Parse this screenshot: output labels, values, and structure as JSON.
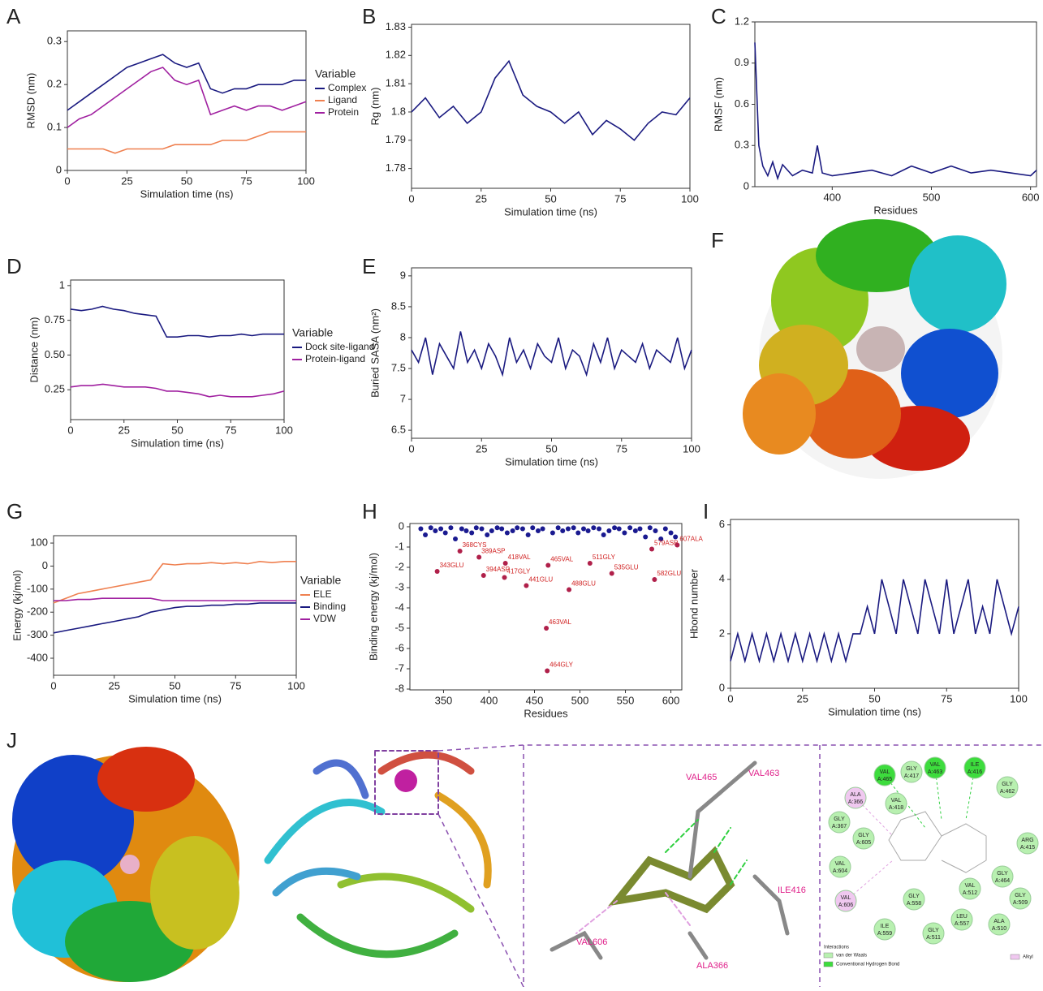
{
  "chart_data": [
    {
      "type": "line",
      "panel": "A",
      "xlabel": "Simulation time (ns)",
      "ylabel": "RMSD (nm)",
      "xlim": [
        0,
        100
      ],
      "ylim": [
        0,
        0.325
      ],
      "xticks": [
        0,
        25,
        50,
        75,
        100
      ],
      "yticks": [
        0,
        0.1,
        0.2,
        0.3
      ],
      "legend_title": "Variable",
      "x": [
        0,
        5,
        10,
        15,
        20,
        25,
        30,
        35,
        40,
        45,
        50,
        55,
        60,
        65,
        70,
        75,
        80,
        85,
        90,
        95,
        100
      ],
      "series": [
        {
          "name": "Complex",
          "color": "#1a1a80",
          "values": [
            0.14,
            0.16,
            0.18,
            0.2,
            0.22,
            0.24,
            0.25,
            0.26,
            0.27,
            0.25,
            0.24,
            0.25,
            0.19,
            0.18,
            0.19,
            0.19,
            0.2,
            0.2,
            0.2,
            0.21,
            0.21
          ]
        },
        {
          "name": "Ligand",
          "color": "#ef8050",
          "values": [
            0.05,
            0.05,
            0.05,
            0.05,
            0.04,
            0.05,
            0.05,
            0.05,
            0.05,
            0.06,
            0.06,
            0.06,
            0.06,
            0.07,
            0.07,
            0.07,
            0.08,
            0.09,
            0.09,
            0.09,
            0.09
          ]
        },
        {
          "name": "Protein",
          "color": "#a020a0",
          "values": [
            0.1,
            0.12,
            0.13,
            0.15,
            0.17,
            0.19,
            0.21,
            0.23,
            0.24,
            0.21,
            0.2,
            0.21,
            0.13,
            0.14,
            0.15,
            0.14,
            0.15,
            0.15,
            0.14,
            0.15,
            0.16
          ]
        }
      ]
    },
    {
      "type": "line",
      "panel": "B",
      "xlabel": "Simulation time (ns)",
      "ylabel": "Rg (nm)",
      "xlim": [
        0,
        100
      ],
      "ylim": [
        1.773,
        1.831
      ],
      "xticks": [
        0,
        25,
        50,
        75,
        100
      ],
      "yticks": [
        1.78,
        1.79,
        1.8,
        1.81,
        1.82,
        1.83
      ],
      "x": [
        0,
        5,
        10,
        15,
        20,
        25,
        30,
        35,
        40,
        45,
        50,
        55,
        60,
        65,
        70,
        75,
        80,
        85,
        90,
        95,
        100
      ],
      "series": [
        {
          "color": "#1a1a80",
          "values": [
            1.8,
            1.805,
            1.798,
            1.802,
            1.796,
            1.8,
            1.812,
            1.818,
            1.806,
            1.802,
            1.8,
            1.796,
            1.8,
            1.792,
            1.797,
            1.794,
            1.79,
            1.796,
            1.8,
            1.799,
            1.805
          ]
        }
      ]
    },
    {
      "type": "line",
      "panel": "C",
      "xlabel": "Residues",
      "ylabel": "RMSF (nm)",
      "xlim": [
        322,
        606
      ],
      "ylim": [
        0,
        1.2
      ],
      "xticks": [
        400,
        500,
        600
      ],
      "yticks": [
        0,
        0.3,
        0.6,
        0.9,
        1.2
      ],
      "x": [
        322,
        326,
        330,
        335,
        340,
        345,
        350,
        360,
        370,
        380,
        385,
        390,
        400,
        420,
        440,
        460,
        480,
        500,
        520,
        540,
        560,
        580,
        600,
        606
      ],
      "series": [
        {
          "color": "#1a1a80",
          "values": [
            1.05,
            0.3,
            0.15,
            0.08,
            0.18,
            0.06,
            0.16,
            0.08,
            0.12,
            0.1,
            0.3,
            0.1,
            0.08,
            0.1,
            0.12,
            0.08,
            0.15,
            0.1,
            0.15,
            0.1,
            0.12,
            0.1,
            0.08,
            0.12
          ]
        }
      ]
    },
    {
      "type": "line",
      "panel": "D",
      "xlabel": "Simulation time (ns)",
      "ylabel": "Distance (nm)",
      "xlim": [
        0,
        100
      ],
      "ylim": [
        0.035,
        1.04
      ],
      "xticks": [
        0,
        25,
        50,
        75,
        100
      ],
      "yticks": [
        0.25,
        {
          "value": 0.5,
          "label": "0.50"
        },
        0.75,
        1
      ],
      "legend_title": "Variable",
      "x": [
        0,
        5,
        10,
        15,
        20,
        25,
        30,
        35,
        40,
        45,
        50,
        55,
        60,
        65,
        70,
        75,
        80,
        85,
        90,
        95,
        100
      ],
      "series": [
        {
          "name": "Dock site-ligand",
          "color": "#1a1a80",
          "values": [
            0.83,
            0.82,
            0.83,
            0.85,
            0.83,
            0.82,
            0.8,
            0.79,
            0.78,
            0.63,
            0.63,
            0.64,
            0.64,
            0.63,
            0.64,
            0.64,
            0.65,
            0.64,
            0.65,
            0.65,
            0.65
          ]
        },
        {
          "name": "Protein-ligand",
          "color": "#a020a0",
          "values": [
            0.27,
            0.28,
            0.28,
            0.29,
            0.28,
            0.27,
            0.27,
            0.27,
            0.26,
            0.24,
            0.24,
            0.23,
            0.22,
            0.2,
            0.21,
            0.2,
            0.2,
            0.2,
            0.21,
            0.22,
            0.24
          ]
        }
      ]
    },
    {
      "type": "line",
      "panel": "E",
      "xlabel": "Simulation time (ns)",
      "ylabel": "Buried SASA (nm²)",
      "xlim": [
        0,
        100
      ],
      "ylim": [
        6.37,
        9.13
      ],
      "xticks": [
        0,
        25,
        50,
        75,
        100
      ],
      "yticks": [
        6.5,
        7,
        7.5,
        8,
        8.5,
        9
      ],
      "x": [
        0,
        2.5,
        5,
        7.5,
        10,
        12.5,
        15,
        17.5,
        20,
        22.5,
        25,
        27.5,
        30,
        32.5,
        35,
        37.5,
        40,
        42.5,
        45,
        47.5,
        50,
        52.5,
        55,
        57.5,
        60,
        62.5,
        65,
        67.5,
        70,
        72.5,
        75,
        77.5,
        80,
        82.5,
        85,
        87.5,
        90,
        92.5,
        95,
        97.5,
        100
      ],
      "series": [
        {
          "color": "#1a1a80",
          "values": [
            7.8,
            7.6,
            8.0,
            7.4,
            7.9,
            7.7,
            7.5,
            8.1,
            7.6,
            7.8,
            7.5,
            7.9,
            7.7,
            7.4,
            8.0,
            7.6,
            7.8,
            7.5,
            7.9,
            7.7,
            7.6,
            8.0,
            7.5,
            7.8,
            7.7,
            7.4,
            7.9,
            7.6,
            8.0,
            7.5,
            7.8,
            7.7,
            7.6,
            7.9,
            7.5,
            7.8,
            7.7,
            7.6,
            8.0,
            7.5,
            7.8
          ]
        }
      ]
    },
    {
      "type": "line",
      "panel": "G",
      "xlabel": "Simulation time (ns)",
      "ylabel": "Energy (kj/mol)",
      "xlim": [
        0,
        100
      ],
      "ylim": [
        -474,
        132
      ],
      "xticks": [
        0,
        25,
        50,
        75,
        100
      ],
      "yticks": [
        100,
        0,
        -100,
        -200,
        -300,
        -400
      ],
      "legend_title": "Variable",
      "x": [
        0,
        5,
        10,
        15,
        20,
        25,
        30,
        35,
        40,
        45,
        50,
        55,
        60,
        65,
        70,
        75,
        80,
        85,
        90,
        95,
        100
      ],
      "series": [
        {
          "name": "ELE",
          "color": "#ef8050",
          "values": [
            -160,
            -140,
            -120,
            -110,
            -100,
            -90,
            -80,
            -70,
            -60,
            10,
            5,
            10,
            10,
            15,
            10,
            15,
            10,
            20,
            15,
            20,
            20
          ]
        },
        {
          "name": "Binding",
          "color": "#1a1a80",
          "values": [
            -290,
            -280,
            -270,
            -260,
            -250,
            -240,
            -230,
            -220,
            -200,
            -190,
            -180,
            -175,
            -175,
            -170,
            -170,
            -165,
            -165,
            -160,
            -160,
            -160,
            -160
          ]
        },
        {
          "name": "VDW",
          "color": "#a020a0",
          "values": [
            -150,
            -150,
            -145,
            -145,
            -140,
            -140,
            -140,
            -140,
            -140,
            -150,
            -150,
            -150,
            -150,
            -150,
            -150,
            -150,
            -150,
            -150,
            -150,
            -150,
            -150
          ]
        }
      ]
    },
    {
      "type": "scatter",
      "panel": "H",
      "xlabel": "Residues",
      "ylabel": "Binding energy (kj/mol)",
      "xlim": [
        313,
        612
      ],
      "ylim": [
        -8.04,
        0.16
      ],
      "xticks": [
        350,
        400,
        450,
        500,
        550,
        600
      ],
      "yticks": [
        0,
        -1,
        -2,
        -3,
        -4,
        -5,
        -6,
        -7,
        -8
      ],
      "series": [
        {
          "color": "#1a1a90",
          "x": [
            325,
            330,
            336,
            341,
            347,
            352,
            358,
            363,
            370,
            375,
            381,
            386,
            392,
            398,
            403,
            409,
            414,
            420,
            426,
            431,
            437,
            443,
            448,
            454,
            459,
            470,
            476,
            481,
            487,
            493,
            498,
            504,
            509,
            515,
            521,
            526,
            532,
            538,
            543,
            549,
            555,
            561,
            566,
            572,
            577,
            583,
            589,
            594,
            600,
            605
          ],
          "values": [
            -0.1,
            -0.4,
            -0.05,
            -0.2,
            -0.1,
            -0.3,
            -0.05,
            -0.6,
            -0.1,
            -0.2,
            -0.3,
            -0.05,
            -0.1,
            -0.4,
            -0.2,
            -0.05,
            -0.1,
            -0.3,
            -0.2,
            -0.05,
            -0.1,
            -0.4,
            -0.05,
            -0.2,
            -0.1,
            -0.3,
            -0.05,
            -0.2,
            -0.1,
            -0.05,
            -0.3,
            -0.1,
            -0.2,
            -0.05,
            -0.1,
            -0.4,
            -0.2,
            -0.05,
            -0.1,
            -0.3,
            -0.05,
            -0.2,
            -0.1,
            -0.5,
            -0.05,
            -0.2,
            -0.6,
            -0.1,
            -0.3,
            -0.5
          ]
        },
        {
          "color": "#b0204a",
          "x": [
            343,
            368,
            389,
            394,
            417,
            418,
            441,
            463,
            464,
            465,
            488,
            511,
            535,
            579,
            582,
            607
          ],
          "values": [
            -2.2,
            -1.2,
            -1.5,
            -2.4,
            -2.5,
            -1.8,
            -2.9,
            -5.0,
            -7.1,
            -1.9,
            -3.1,
            -1.8,
            -2.3,
            -1.1,
            -2.6,
            -0.9
          ],
          "labels": [
            "343GLU",
            "368CYS",
            "389ASP",
            "394ASP",
            "417GLY",
            "418VAL",
            "441GLU",
            "463VAL",
            "464GLY",
            "465VAL",
            "488GLU",
            "511GLY",
            "535GLU",
            "579ASP",
            "582GLU",
            "607ALA"
          ]
        }
      ]
    },
    {
      "type": "line",
      "panel": "I",
      "xlabel": "Simulation time (ns)",
      "ylabel": "Hbond number",
      "xlim": [
        0,
        100
      ],
      "ylim": [
        0,
        6.2
      ],
      "xticks": [
        0,
        25,
        50,
        75,
        100
      ],
      "yticks": [
        0,
        2,
        4,
        6
      ],
      "x": [
        0,
        2.5,
        5,
        7.5,
        10,
        12.5,
        15,
        17.5,
        20,
        22.5,
        25,
        27.5,
        30,
        32.5,
        35,
        37.5,
        40,
        42.5,
        45,
        47.5,
        50,
        52.5,
        55,
        57.5,
        60,
        62.5,
        65,
        67.5,
        70,
        72.5,
        75,
        77.5,
        80,
        82.5,
        85,
        87.5,
        90,
        92.5,
        95,
        97.5,
        100
      ],
      "series": [
        {
          "color": "#1a1a80",
          "values": [
            1,
            2,
            1,
            2,
            1,
            2,
            1,
            2,
            1,
            2,
            1,
            2,
            1,
            2,
            1,
            2,
            1,
            2,
            2,
            3,
            2,
            4,
            3,
            2,
            4,
            3,
            2,
            4,
            3,
            2,
            4,
            2,
            3,
            4,
            2,
            3,
            2,
            4,
            3,
            2,
            3
          ]
        }
      ]
    }
  ],
  "figures": [
    {
      "panel": "F"
    },
    {
      "panel": "J",
      "labels": [
        "VAL465",
        "VAL463",
        "ILE416",
        "VAL606",
        "ALA366"
      ],
      "nodes": [
        {
          "name": "VAL",
          "id": "A:465",
          "color": "#3ddc3d"
        },
        {
          "name": "GLY",
          "id": "A:417",
          "color": "#b8f0b0"
        },
        {
          "name": "VAL",
          "id": "A:463",
          "color": "#3ddc3d"
        },
        {
          "name": "ILE",
          "id": "A:416",
          "color": "#3ddc3d"
        },
        {
          "name": "GLY",
          "id": "A:462",
          "color": "#b8f0b0"
        },
        {
          "name": "ALA",
          "id": "A:366",
          "color": "#f0c8f0"
        },
        {
          "name": "VAL",
          "id": "A:418",
          "color": "#b8f0b0"
        },
        {
          "name": "GLY",
          "id": "A:367",
          "color": "#b8f0b0"
        },
        {
          "name": "GLY",
          "id": "A:605",
          "color": "#b8f0b0"
        },
        {
          "name": "ARG",
          "id": "A:415",
          "color": "#b8f0b0"
        },
        {
          "name": "VAL",
          "id": "A:604",
          "color": "#b8f0b0"
        },
        {
          "name": "GLY",
          "id": "A:464",
          "color": "#b8f0b0"
        },
        {
          "name": "VAL",
          "id": "A:512",
          "color": "#b8f0b0"
        },
        {
          "name": "VAL",
          "id": "A:606",
          "color": "#f0c8f0"
        },
        {
          "name": "GLY",
          "id": "A:558",
          "color": "#b8f0b0"
        },
        {
          "name": "GLY",
          "id": "A:509",
          "color": "#b8f0b0"
        },
        {
          "name": "LEU",
          "id": "A:557",
          "color": "#b8f0b0"
        },
        {
          "name": "ALA",
          "id": "A:510",
          "color": "#b8f0b0"
        },
        {
          "name": "ILE",
          "id": "A:559",
          "color": "#b8f0b0"
        },
        {
          "name": "GLY",
          "id": "A:511",
          "color": "#b8f0b0"
        }
      ],
      "legend_title": "Interactions",
      "legend": [
        {
          "name": "van der Waals",
          "color": "#b8f0b0"
        },
        {
          "name": "Conventional Hydrogen Bond",
          "color": "#3ddc3d"
        },
        {
          "name": "Alkyl",
          "color": "#f0c8f0"
        }
      ]
    }
  ]
}
